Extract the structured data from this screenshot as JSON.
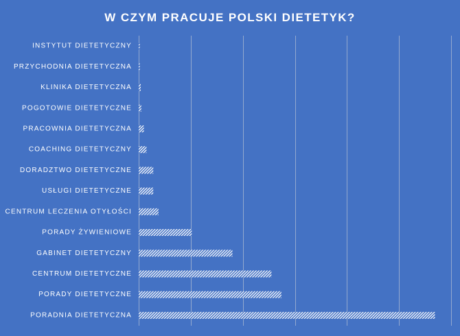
{
  "chart_data": {
    "type": "bar",
    "orientation": "horizontal",
    "title": "W CZYM PRACUJE POLSKI DIETETYK?",
    "xlabel": "",
    "ylabel": "",
    "categories": [
      "INSTYTUT DIETETYCZNY",
      "PRZYCHODNIA DIETETYCZNA",
      "KLINIKA DIETETYCZNA",
      "POGOTOWIE DIETETYCZNE",
      "PRACOWNIA DIETETYCZNA",
      "COACHING DIETETYCZNY",
      "DORADZTWO DIETETYCZNE",
      "USŁUGI DIETETYCZNE",
      "CENTRUM LECZENIA OTYŁOŚCI",
      "PORADY ŻYWIENIOWE",
      "GABINET DIETETYCZNY",
      "CENTRUM DIETETYCZNE",
      "PORADY DIETETYCZNE",
      "PORADNIA DIETETYCZNA"
    ],
    "values": [
      0.2,
      0.2,
      0.4,
      0.5,
      1,
      1.5,
      2.8,
      2.8,
      3.8,
      10.2,
      18,
      25.5,
      27.4,
      56.9
    ],
    "xlim": [
      0,
      60
    ],
    "grid_x_step": 10,
    "grid": true,
    "legend": "none",
    "x_tick_labels_visible": false,
    "colors": {
      "background": "#4472C4",
      "bar_pattern_fg": "#FFFFFF",
      "bar_pattern_bg": "#4472C4",
      "gridline": "#D9D9D9",
      "text": "#FFFFFF"
    }
  }
}
